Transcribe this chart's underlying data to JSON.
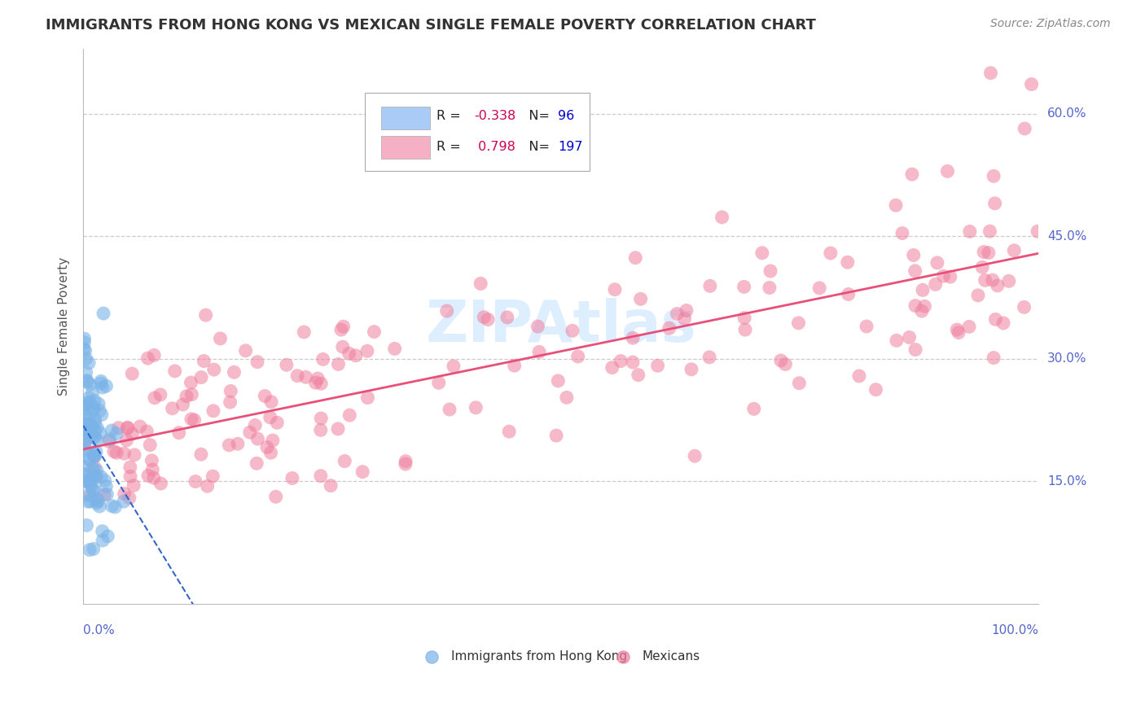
{
  "title": "IMMIGRANTS FROM HONG KONG VS MEXICAN SINGLE FEMALE POVERTY CORRELATION CHART",
  "source": "Source: ZipAtlas.com",
  "ylabel": "Single Female Poverty",
  "yticks_labels": [
    "15.0%",
    "30.0%",
    "45.0%",
    "60.0%"
  ],
  "ytick_vals": [
    0.15,
    0.3,
    0.45,
    0.6
  ],
  "ylim": [
    0.0,
    0.68
  ],
  "xlim": [
    0.0,
    1.0
  ],
  "hk_R": -0.338,
  "hk_N": 96,
  "mx_R": 0.798,
  "mx_N": 197,
  "scatter_hk_color": "#7ab3e8",
  "scatter_mx_color": "#f080a0",
  "trend_hk_color": "#3366cc",
  "trend_mx_color": "#e8507a",
  "legend_hk_fill": "#aacbf5",
  "legend_mx_fill": "#f5b0c5",
  "watermark_color": "#ddeeff",
  "background_color": "#ffffff",
  "grid_color": "#cccccc",
  "title_color": "#333333",
  "axis_label_color": "#5566cc",
  "legend_R_neg_color": "#cc0055",
  "legend_R_pos_color": "#cc0055",
  "legend_N_color": "#0000cc",
  "source_color": "#888888"
}
